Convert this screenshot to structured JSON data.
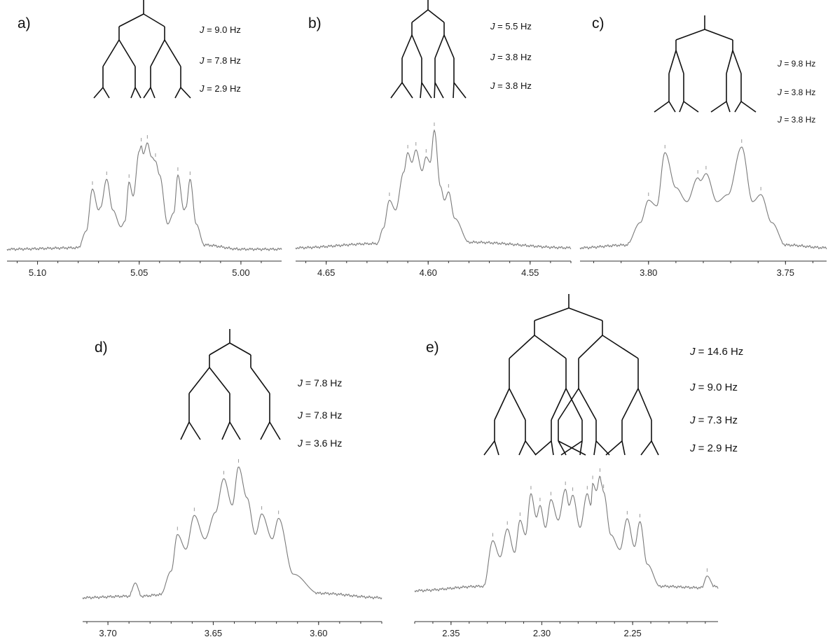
{
  "chart_data": [
    {
      "id": "a",
      "type": "line",
      "panel_label": "a)",
      "x_axis": {
        "ticks": [
          "5.10",
          "5.05",
          "5.00"
        ],
        "tick_values": [
          5.1,
          5.05,
          5.0
        ],
        "range": [
          5.115,
          4.98
        ],
        "reversed": true
      },
      "j_labels": [
        "9.0 Hz",
        "7.8 Hz",
        "2.9 Hz"
      ],
      "peaks": [
        {
          "x": 5.073,
          "y": 0.45
        },
        {
          "x": 5.066,
          "y": 0.52
        },
        {
          "x": 5.055,
          "y": 0.5
        },
        {
          "x": 5.049,
          "y": 0.76
        },
        {
          "x": 5.046,
          "y": 0.78
        },
        {
          "x": 5.042,
          "y": 0.65
        },
        {
          "x": 5.031,
          "y": 0.55
        },
        {
          "x": 5.025,
          "y": 0.52
        }
      ],
      "series": [
        {
          "x": [
            5.115,
            5.08,
            5.076,
            5.073,
            5.07,
            5.069,
            5.066,
            5.063,
            5.059,
            5.057,
            5.055,
            5.053,
            5.05,
            5.049,
            5.048,
            5.046,
            5.044,
            5.042,
            5.04,
            5.036,
            5.033,
            5.031,
            5.028,
            5.027,
            5.025,
            5.022,
            5.018,
            5.0,
            4.98
          ],
          "y": [
            0.02,
            0.03,
            0.15,
            0.45,
            0.3,
            0.32,
            0.52,
            0.3,
            0.18,
            0.22,
            0.5,
            0.4,
            0.72,
            0.76,
            0.7,
            0.78,
            0.68,
            0.65,
            0.55,
            0.2,
            0.28,
            0.55,
            0.3,
            0.32,
            0.52,
            0.2,
            0.05,
            0.02,
            0.02
          ]
        }
      ]
    },
    {
      "id": "b",
      "type": "line",
      "panel_label": "b)",
      "x_axis": {
        "ticks": [
          "4.65",
          "4.60",
          "4.55"
        ],
        "tick_values": [
          4.65,
          4.6,
          4.55
        ],
        "range": [
          4.665,
          4.53
        ],
        "reversed": true
      },
      "j_labels": [
        "5.5 Hz",
        "3.8 Hz",
        "3.8 Hz"
      ],
      "peaks": [
        {
          "x": 4.619,
          "y": 0.35
        },
        {
          "x": 4.61,
          "y": 0.69
        },
        {
          "x": 4.606,
          "y": 0.71
        },
        {
          "x": 4.601,
          "y": 0.66
        },
        {
          "x": 4.597,
          "y": 0.85
        },
        {
          "x": 4.59,
          "y": 0.41
        }
      ],
      "series": [
        {
          "x": [
            4.665,
            4.625,
            4.622,
            4.619,
            4.616,
            4.612,
            4.61,
            4.608,
            4.606,
            4.603,
            4.601,
            4.599,
            4.597,
            4.594,
            4.592,
            4.59,
            4.587,
            4.58,
            4.53
          ],
          "y": [
            0.01,
            0.04,
            0.15,
            0.35,
            0.28,
            0.55,
            0.69,
            0.62,
            0.71,
            0.56,
            0.66,
            0.62,
            0.85,
            0.45,
            0.35,
            0.41,
            0.22,
            0.05,
            0.01
          ]
        }
      ]
    },
    {
      "id": "c",
      "type": "line",
      "panel_label": "c)",
      "x_axis": {
        "ticks": [
          "3.80",
          "3.75"
        ],
        "tick_values": [
          3.8,
          3.75
        ],
        "range": [
          3.825,
          3.735
        ],
        "reversed": true
      },
      "j_labels": [
        "9.8 Hz",
        "3.8 Hz",
        "3.8 Hz"
      ],
      "peaks": [
        {
          "x": 3.8,
          "y": 0.36
        },
        {
          "x": 3.794,
          "y": 0.7
        },
        {
          "x": 3.782,
          "y": 0.52
        },
        {
          "x": 3.779,
          "y": 0.55
        },
        {
          "x": 3.766,
          "y": 0.74
        },
        {
          "x": 3.759,
          "y": 0.4
        }
      ],
      "series": [
        {
          "x": [
            3.825,
            3.808,
            3.803,
            3.8,
            3.797,
            3.794,
            3.79,
            3.786,
            3.782,
            3.781,
            3.779,
            3.775,
            3.771,
            3.766,
            3.762,
            3.759,
            3.755,
            3.75,
            3.735
          ],
          "y": [
            0.02,
            0.04,
            0.2,
            0.36,
            0.32,
            0.7,
            0.45,
            0.35,
            0.52,
            0.5,
            0.55,
            0.35,
            0.4,
            0.74,
            0.35,
            0.4,
            0.2,
            0.04,
            0.02
          ]
        }
      ]
    },
    {
      "id": "d",
      "type": "line",
      "panel_label": "d)",
      "x_axis": {
        "ticks": [
          "3.70",
          "3.65",
          "3.60"
        ],
        "tick_values": [
          3.7,
          3.65,
          3.6
        ],
        "range": [
          3.712,
          3.57
        ],
        "reversed": true
      },
      "j_labels": [
        "7.8 Hz",
        "7.8 Hz",
        "3.6 Hz"
      ],
      "peaks": [
        {
          "x": 3.667,
          "y": 0.45
        },
        {
          "x": 3.659,
          "y": 0.58
        },
        {
          "x": 3.645,
          "y": 0.83
        },
        {
          "x": 3.638,
          "y": 0.91
        },
        {
          "x": 3.627,
          "y": 0.59
        },
        {
          "x": 3.619,
          "y": 0.56
        }
      ],
      "series": [
        {
          "x": [
            3.712,
            3.69,
            3.687,
            3.684,
            3.675,
            3.67,
            3.667,
            3.663,
            3.659,
            3.654,
            3.649,
            3.645,
            3.641,
            3.638,
            3.634,
            3.63,
            3.627,
            3.622,
            3.619,
            3.612,
            3.6,
            3.57
          ],
          "y": [
            0.02,
            0.03,
            0.12,
            0.03,
            0.04,
            0.2,
            0.45,
            0.35,
            0.58,
            0.42,
            0.6,
            0.83,
            0.65,
            0.91,
            0.7,
            0.45,
            0.59,
            0.42,
            0.56,
            0.18,
            0.05,
            0.02
          ]
        }
      ]
    },
    {
      "id": "e",
      "type": "line",
      "panel_label": "e)",
      "x_axis": {
        "ticks": [
          "2.35",
          "2.30",
          "2.25"
        ],
        "tick_values": [
          2.35,
          2.3,
          2.25
        ],
        "range": [
          2.37,
          2.203
        ],
        "reversed": true
      },
      "j_labels": [
        "14.6 Hz",
        "9.0 Hz",
        "7.3 Hz",
        "2.9 Hz"
      ],
      "peaks": [
        {
          "x": 2.327,
          "y": 0.36
        },
        {
          "x": 2.319,
          "y": 0.44
        },
        {
          "x": 2.312,
          "y": 0.5
        },
        {
          "x": 2.306,
          "y": 0.68
        },
        {
          "x": 2.301,
          "y": 0.6
        },
        {
          "x": 2.295,
          "y": 0.64
        },
        {
          "x": 2.287,
          "y": 0.71
        },
        {
          "x": 2.283,
          "y": 0.67
        },
        {
          "x": 2.275,
          "y": 0.68
        },
        {
          "x": 2.272,
          "y": 0.75
        },
        {
          "x": 2.268,
          "y": 0.8
        },
        {
          "x": 2.266,
          "y": 0.69
        },
        {
          "x": 2.253,
          "y": 0.51
        },
        {
          "x": 2.246,
          "y": 0.49
        },
        {
          "x": 2.209,
          "y": 0.12
        }
      ],
      "series": [
        {
          "x": [
            2.37,
            2.332,
            2.327,
            2.323,
            2.319,
            2.315,
            2.312,
            2.309,
            2.306,
            2.303,
            2.301,
            2.298,
            2.295,
            2.291,
            2.287,
            2.285,
            2.283,
            2.279,
            2.275,
            2.273,
            2.272,
            2.27,
            2.268,
            2.267,
            2.266,
            2.262,
            2.257,
            2.253,
            2.249,
            2.246,
            2.242,
            2.235,
            2.212,
            2.209,
            2.205,
            2.203
          ],
          "y": [
            0.02,
            0.05,
            0.36,
            0.25,
            0.44,
            0.28,
            0.5,
            0.4,
            0.68,
            0.52,
            0.6,
            0.45,
            0.64,
            0.5,
            0.71,
            0.6,
            0.67,
            0.45,
            0.68,
            0.6,
            0.75,
            0.7,
            0.8,
            0.74,
            0.69,
            0.4,
            0.3,
            0.51,
            0.32,
            0.49,
            0.2,
            0.05,
            0.04,
            0.12,
            0.05,
            0.04
          ]
        }
      ]
    }
  ]
}
